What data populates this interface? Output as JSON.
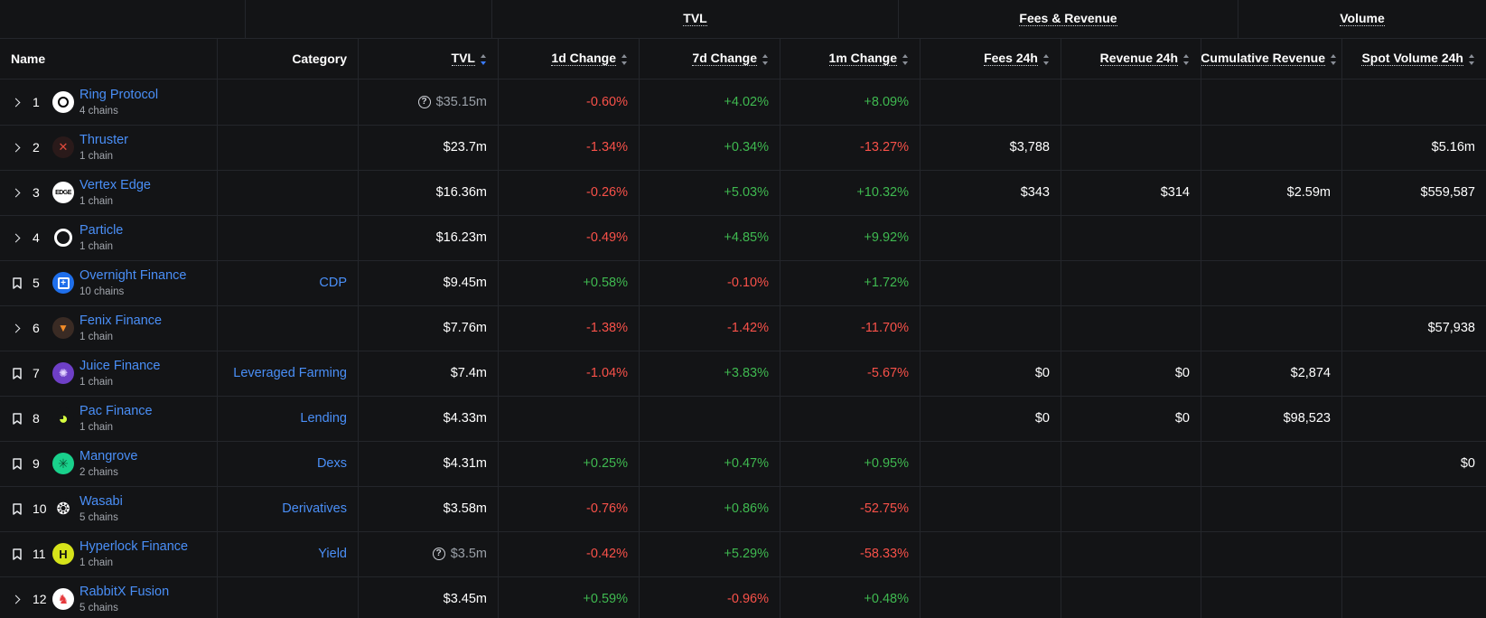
{
  "groups": {
    "tvl": "TVL",
    "fees": "Fees & Revenue",
    "volume": "Volume"
  },
  "columns": {
    "name": "Name",
    "category": "Category",
    "tvl": "TVL",
    "change_1d": "1d Change",
    "change_7d": "7d Change",
    "change_1m": "1m Change",
    "fees_24h": "Fees 24h",
    "revenue_24h": "Revenue 24h",
    "cumulative_revenue": "Cumulative Revenue",
    "spot_volume_24h": "Spot Volume 24h"
  },
  "colors": {
    "link": "#4a8ff7",
    "positive": "#3fb950",
    "negative": "#f85149",
    "background": "#131416"
  },
  "rows": [
    {
      "rank": "1",
      "expander": "chevron-right-icon",
      "name": "Ring Protocol",
      "chains": "4 chains",
      "category": "",
      "tvl": "$35.15m",
      "tvl_muted": true,
      "change_1d": "-0.60%",
      "change_7d": "+4.02%",
      "change_1m": "+8.09%",
      "fees_24h": "",
      "revenue_24h": "",
      "cumulative_revenue": "",
      "spot_volume_24h": ""
    },
    {
      "rank": "2",
      "expander": "chevron-right-icon",
      "name": "Thruster",
      "chains": "1 chain",
      "category": "",
      "tvl": "$23.7m",
      "change_1d": "-1.34%",
      "change_7d": "+0.34%",
      "change_1m": "-13.27%",
      "fees_24h": "$3,788",
      "revenue_24h": "",
      "cumulative_revenue": "",
      "spot_volume_24h": "$5.16m"
    },
    {
      "rank": "3",
      "expander": "chevron-right-icon",
      "name": "Vertex Edge",
      "chains": "1 chain",
      "category": "",
      "tvl": "$16.36m",
      "change_1d": "-0.26%",
      "change_7d": "+5.03%",
      "change_1m": "+10.32%",
      "fees_24h": "$343",
      "revenue_24h": "$314",
      "cumulative_revenue": "$2.59m",
      "spot_volume_24h": "$559,587"
    },
    {
      "rank": "4",
      "expander": "chevron-right-icon",
      "name": "Particle",
      "chains": "1 chain",
      "category": "",
      "tvl": "$16.23m",
      "change_1d": "-0.49%",
      "change_7d": "+4.85%",
      "change_1m": "+9.92%",
      "fees_24h": "",
      "revenue_24h": "",
      "cumulative_revenue": "",
      "spot_volume_24h": ""
    },
    {
      "rank": "5",
      "expander": "bookmark-icon",
      "name": "Overnight Finance",
      "chains": "10 chains",
      "category": "CDP",
      "tvl": "$9.45m",
      "change_1d": "+0.58%",
      "change_7d": "-0.10%",
      "change_1m": "+1.72%",
      "fees_24h": "",
      "revenue_24h": "",
      "cumulative_revenue": "",
      "spot_volume_24h": ""
    },
    {
      "rank": "6",
      "expander": "chevron-right-icon",
      "name": "Fenix Finance",
      "chains": "1 chain",
      "category": "",
      "tvl": "$7.76m",
      "change_1d": "-1.38%",
      "change_7d": "-1.42%",
      "change_1m": "-11.70%",
      "fees_24h": "",
      "revenue_24h": "",
      "cumulative_revenue": "",
      "spot_volume_24h": "$57,938"
    },
    {
      "rank": "7",
      "expander": "bookmark-icon",
      "name": "Juice Finance",
      "chains": "1 chain",
      "category": "Leveraged Farming",
      "tvl": "$7.4m",
      "change_1d": "-1.04%",
      "change_7d": "+3.83%",
      "change_1m": "-5.67%",
      "fees_24h": "$0",
      "revenue_24h": "$0",
      "cumulative_revenue": "$2,874",
      "spot_volume_24h": ""
    },
    {
      "rank": "8",
      "expander": "bookmark-icon",
      "name": "Pac Finance",
      "chains": "1 chain",
      "category": "Lending",
      "tvl": "$4.33m",
      "change_1d": "",
      "change_7d": "",
      "change_1m": "",
      "fees_24h": "$0",
      "revenue_24h": "$0",
      "cumulative_revenue": "$98,523",
      "spot_volume_24h": ""
    },
    {
      "rank": "9",
      "expander": "bookmark-icon",
      "name": "Mangrove",
      "chains": "2 chains",
      "category": "Dexs",
      "tvl": "$4.31m",
      "change_1d": "+0.25%",
      "change_7d": "+0.47%",
      "change_1m": "+0.95%",
      "fees_24h": "",
      "revenue_24h": "",
      "cumulative_revenue": "",
      "spot_volume_24h": "$0"
    },
    {
      "rank": "10",
      "expander": "bookmark-icon",
      "name": "Wasabi",
      "chains": "5 chains",
      "category": "Derivatives",
      "tvl": "$3.58m",
      "change_1d": "-0.76%",
      "change_7d": "+0.86%",
      "change_1m": "-52.75%",
      "fees_24h": "",
      "revenue_24h": "",
      "cumulative_revenue": "",
      "spot_volume_24h": ""
    },
    {
      "rank": "11",
      "expander": "bookmark-icon",
      "name": "Hyperlock Finance",
      "chains": "1 chain",
      "category": "Yield",
      "tvl": "$3.5m",
      "tvl_muted": true,
      "change_1d": "-0.42%",
      "change_7d": "+5.29%",
      "change_1m": "-58.33%",
      "fees_24h": "",
      "revenue_24h": "",
      "cumulative_revenue": "",
      "spot_volume_24h": ""
    },
    {
      "rank": "12",
      "expander": "chevron-right-icon",
      "name": "RabbitX Fusion",
      "chains": "5 chains",
      "category": "",
      "tvl": "$3.45m",
      "change_1d": "+0.59%",
      "change_7d": "-0.96%",
      "change_1m": "+0.48%",
      "fees_24h": "",
      "revenue_24h": "",
      "cumulative_revenue": "",
      "spot_volume_24h": ""
    }
  ]
}
